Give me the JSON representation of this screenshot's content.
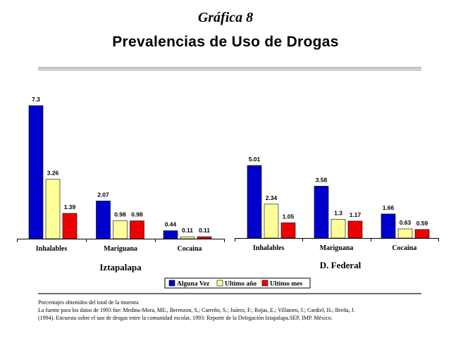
{
  "supertitle": "Gráfica 8",
  "title": "Prevalencias de Uso de Drogas",
  "legend": [
    {
      "label": "Alguna Vez",
      "color": "#0000cc"
    },
    {
      "label": "Ultimo año",
      "color": "#ffff99"
    },
    {
      "label": "Ultimo mes",
      "color": "#ee0000"
    }
  ],
  "chart_data": [
    {
      "type": "bar",
      "title": "Iztapalapa",
      "categories": [
        "Inhalables",
        "Mariguana",
        "Cocaina"
      ],
      "series": [
        {
          "name": "Alguna Vez",
          "values": [
            7.3,
            2.07,
            0.44
          ],
          "labels": [
            "7.3",
            "2.07",
            "0.44"
          ]
        },
        {
          "name": "Ultimo año",
          "values": [
            3.26,
            0.98,
            0.11
          ],
          "labels": [
            "3.26",
            "0.98",
            "0.11"
          ]
        },
        {
          "name": "Ultimo mes",
          "values": [
            1.39,
            0.98,
            0.11
          ],
          "labels": [
            "1.39",
            "0.98",
            "0.11"
          ]
        }
      ],
      "ylim": [
        0,
        7.3
      ],
      "grid": false,
      "legend_position": "bottom"
    },
    {
      "type": "bar",
      "title": "D. Federal",
      "categories": [
        "Inhalables",
        "Mariguana",
        "Cocaina"
      ],
      "series": [
        {
          "name": "Alguna Vez",
          "values": [
            5.01,
            3.58,
            1.66
          ],
          "labels": [
            "5.01",
            "3.58",
            "1.66"
          ]
        },
        {
          "name": "Ultimo año",
          "values": [
            2.34,
            1.3,
            0.63
          ],
          "labels": [
            "2.34",
            "1.3",
            "0.63"
          ]
        },
        {
          "name": "Ultimo mes",
          "values": [
            1.05,
            1.17,
            0.59
          ],
          "labels": [
            "1.05",
            "1.17",
            "0.59"
          ]
        }
      ],
      "ylim": [
        0,
        5.01
      ],
      "grid": false,
      "legend_position": "bottom"
    }
  ],
  "notes": [
    "Porcentajes obtenidos del total de la muestra",
    "La fuente para los datos de 1993 fue: Medina-Mora, ME., Berenzon, S.; Carreño, S.; Juárez, F.; Rojas, E.; Villatoro, J.; Cardiel, H.; Breña, J.",
    "(1994). Encuesta sobre el uso de drogas entre la comunidad escolar, 1993: Reporte de la Delegación Iztapalapa.SEP, IMP. México."
  ]
}
